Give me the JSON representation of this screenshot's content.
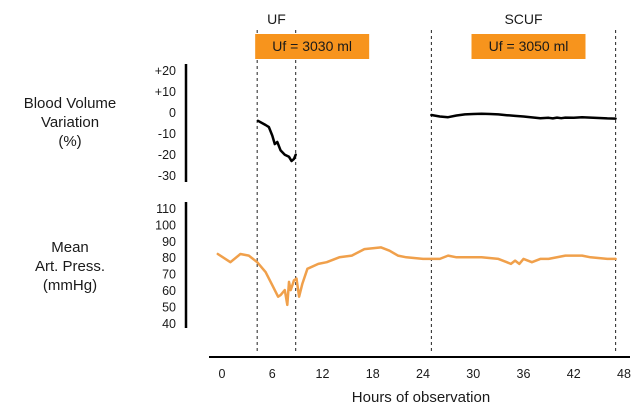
{
  "chart_data": {
    "type": "line",
    "x_axis": {
      "label": "Hours of observation",
      "ticks": [
        0,
        6,
        12,
        18,
        24,
        30,
        36,
        42,
        48
      ],
      "range": [
        -1,
        48
      ]
    },
    "phases": [
      {
        "label": "UF",
        "start_hour": 4.2,
        "end_hour": 8.8,
        "box_label": "Uf = 3030 ml",
        "box_color": "#f7941d"
      },
      {
        "label": "SCUF",
        "start_hour": 25,
        "end_hour": 47,
        "box_label": "Uf = 3050 ml",
        "box_color": "#f7941d"
      }
    ],
    "panels": [
      {
        "ylabel": [
          "Blood Volume",
          "Variation",
          "(%)"
        ],
        "yticks": [
          "+20",
          "+10",
          "0",
          "-10",
          "-20",
          "-30"
        ],
        "ylim": [
          -30,
          20
        ],
        "series": [
          {
            "color": "#000000",
            "segments": [
              [
                [
                  4.3,
                  -3
                ],
                [
                  5.2,
                  -5
                ],
                [
                  5.6,
                  -6
                ],
                [
                  6.0,
                  -10
                ],
                [
                  6.3,
                  -14
                ],
                [
                  6.6,
                  -13
                ],
                [
                  7.0,
                  -17
                ],
                [
                  7.5,
                  -19
                ],
                [
                  8.0,
                  -20
                ],
                [
                  8.3,
                  -22
                ],
                [
                  8.6,
                  -21
                ],
                [
                  8.8,
                  -19
                ]
              ],
              [
                [
                  25,
                  -0.3
                ],
                [
                  26,
                  -1
                ],
                [
                  27,
                  -1.3
                ],
                [
                  28,
                  -0.5
                ],
                [
                  29,
                  0
                ],
                [
                  30,
                  0.2
                ],
                [
                  31,
                  0.3
                ],
                [
                  32,
                  0.2
                ],
                [
                  33,
                  0
                ],
                [
                  34,
                  -0.4
                ],
                [
                  35,
                  -0.7
                ],
                [
                  36,
                  -1
                ],
                [
                  37,
                  -1.4
                ],
                [
                  38,
                  -1.8
                ],
                [
                  39,
                  -1.6
                ],
                [
                  39.5,
                  -1.9
                ],
                [
                  40,
                  -1.5
                ],
                [
                  40.5,
                  -1.8
                ],
                [
                  41,
                  -1.5
                ],
                [
                  42,
                  -1.6
                ],
                [
                  43,
                  -1.3
                ],
                [
                  44,
                  -1.5
                ],
                [
                  45,
                  -1.7
                ],
                [
                  46,
                  -1.9
                ],
                [
                  47,
                  -2
                ]
              ]
            ]
          }
        ]
      },
      {
        "ylabel": [
          "Mean",
          "Art. Press.",
          "(mmHg)"
        ],
        "yticks": [
          "110",
          "100",
          "90",
          "80",
          "70",
          "60",
          "50",
          "40"
        ],
        "ylim": [
          40,
          110
        ],
        "series": [
          {
            "color": "#f0a04b",
            "segments": [
              [
                [
                  -0.5,
                  82
                ],
                [
                  1,
                  77
                ],
                [
                  2.2,
                  82
                ],
                [
                  3.2,
                  81
                ],
                [
                  4.2,
                  77
                ],
                [
                  5.2,
                  71
                ],
                [
                  6.0,
                  63
                ],
                [
                  6.7,
                  56
                ],
                [
                  7.0,
                  57
                ],
                [
                  7.5,
                  60
                ],
                [
                  7.8,
                  51
                ],
                [
                  8.0,
                  65
                ],
                [
                  8.2,
                  60
                ],
                [
                  8.6,
                  66
                ],
                [
                  8.9,
                  67
                ],
                [
                  9.2,
                  56
                ],
                [
                  9.6,
                  64
                ],
                [
                  10.2,
                  73
                ],
                [
                  11.5,
                  76
                ],
                [
                  12.5,
                  77
                ],
                [
                  14,
                  80
                ],
                [
                  15.5,
                  81
                ],
                [
                  17,
                  85
                ],
                [
                  19,
                  86
                ],
                [
                  20,
                  84
                ],
                [
                  21,
                  81
                ],
                [
                  22,
                  80
                ],
                [
                  24,
                  79
                ],
                [
                  25,
                  79
                ],
                [
                  26,
                  79
                ],
                [
                  27,
                  81
                ],
                [
                  28,
                  80
                ],
                [
                  29,
                  80
                ],
                [
                  31,
                  80
                ],
                [
                  33,
                  79
                ],
                [
                  34,
                  77
                ],
                [
                  34.5,
                  76
                ],
                [
                  35,
                  78
                ],
                [
                  35.5,
                  76
                ],
                [
                  36,
                  79
                ],
                [
                  37,
                  77
                ],
                [
                  38,
                  79
                ],
                [
                  39,
                  79
                ],
                [
                  41,
                  81
                ],
                [
                  43,
                  81
                ],
                [
                  44,
                  80
                ],
                [
                  46,
                  79
                ],
                [
                  47,
                  79
                ]
              ]
            ]
          }
        ]
      }
    ],
    "grid": false,
    "legend": "none"
  }
}
